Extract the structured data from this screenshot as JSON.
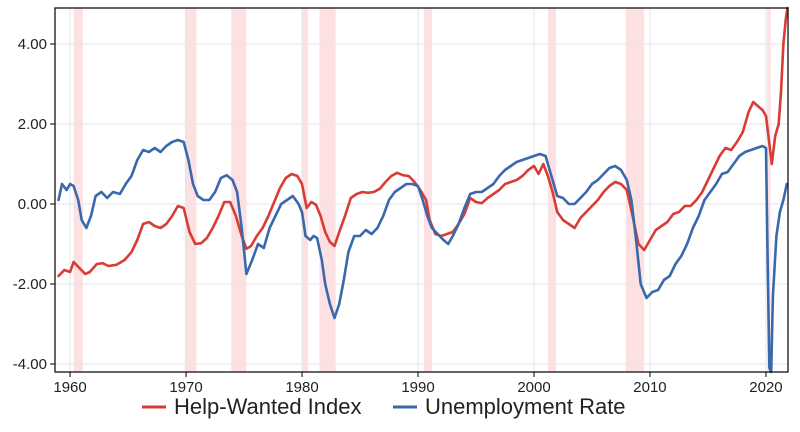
{
  "chart_data": {
    "type": "line",
    "title": "",
    "xlabel": "",
    "ylabel": "",
    "xlim": [
      1958.7,
      2021.9
    ],
    "ylim": [
      -4.2,
      4.9
    ],
    "x_ticks": [
      1960,
      1970,
      1980,
      1990,
      2000,
      2010,
      2020
    ],
    "x_tick_labels": [
      "1960",
      "1970",
      "1980",
      "1990",
      "2000",
      "2010",
      "2020"
    ],
    "y_ticks": [
      4,
      2,
      0,
      -2,
      -4
    ],
    "y_tick_labels": [
      "4.00",
      "2.00",
      "0.00",
      "-2.00",
      "-4.00"
    ],
    "grid": true,
    "legend_position": "bottom",
    "recession_shading": [
      [
        1960.3,
        1961.1
      ],
      [
        1969.9,
        1970.9
      ],
      [
        1973.9,
        1975.2
      ],
      [
        1980.0,
        1980.5
      ],
      [
        1981.5,
        1982.9
      ],
      [
        1990.5,
        1991.2
      ],
      [
        2001.2,
        2001.9
      ],
      [
        2007.9,
        2009.5
      ],
      [
        2020.1,
        2020.4
      ]
    ],
    "colors": {
      "recession": "#fde0e2",
      "grid": "#e6e6e6"
    },
    "series": [
      {
        "name": "Help-Wanted Index",
        "color": "#d93b35",
        "points": [
          [
            1959.0,
            -1.8
          ],
          [
            1959.5,
            -1.65
          ],
          [
            1960.0,
            -1.7
          ],
          [
            1960.3,
            -1.45
          ],
          [
            1960.8,
            -1.6
          ],
          [
            1961.3,
            -1.75
          ],
          [
            1961.7,
            -1.7
          ],
          [
            1962.3,
            -1.5
          ],
          [
            1962.8,
            -1.48
          ],
          [
            1963.3,
            -1.55
          ],
          [
            1964.0,
            -1.52
          ],
          [
            1964.7,
            -1.4
          ],
          [
            1965.3,
            -1.2
          ],
          [
            1965.8,
            -0.9
          ],
          [
            1966.3,
            -0.5
          ],
          [
            1966.8,
            -0.45
          ],
          [
            1967.3,
            -0.55
          ],
          [
            1967.8,
            -0.6
          ],
          [
            1968.3,
            -0.5
          ],
          [
            1968.8,
            -0.3
          ],
          [
            1969.3,
            -0.05
          ],
          [
            1969.8,
            -0.1
          ],
          [
            1970.3,
            -0.7
          ],
          [
            1970.8,
            -1.0
          ],
          [
            1971.3,
            -0.98
          ],
          [
            1971.8,
            -0.85
          ],
          [
            1972.3,
            -0.6
          ],
          [
            1972.8,
            -0.3
          ],
          [
            1973.3,
            0.05
          ],
          [
            1973.8,
            0.05
          ],
          [
            1974.3,
            -0.3
          ],
          [
            1974.8,
            -0.8
          ],
          [
            1975.2,
            -1.12
          ],
          [
            1975.6,
            -1.05
          ],
          [
            1976.1,
            -0.8
          ],
          [
            1976.6,
            -0.6
          ],
          [
            1977.1,
            -0.3
          ],
          [
            1977.6,
            0.05
          ],
          [
            1978.1,
            0.4
          ],
          [
            1978.6,
            0.65
          ],
          [
            1979.1,
            0.75
          ],
          [
            1979.6,
            0.7
          ],
          [
            1980.0,
            0.5
          ],
          [
            1980.4,
            -0.1
          ],
          [
            1980.8,
            0.05
          ],
          [
            1981.2,
            -0.02
          ],
          [
            1981.6,
            -0.3
          ],
          [
            1982.0,
            -0.7
          ],
          [
            1982.4,
            -0.95
          ],
          [
            1982.8,
            -1.05
          ],
          [
            1983.2,
            -0.7
          ],
          [
            1983.7,
            -0.3
          ],
          [
            1984.2,
            0.15
          ],
          [
            1984.7,
            0.25
          ],
          [
            1985.2,
            0.3
          ],
          [
            1985.7,
            0.28
          ],
          [
            1986.2,
            0.3
          ],
          [
            1986.7,
            0.38
          ],
          [
            1987.2,
            0.55
          ],
          [
            1987.7,
            0.7
          ],
          [
            1988.2,
            0.78
          ],
          [
            1988.7,
            0.72
          ],
          [
            1989.2,
            0.7
          ],
          [
            1989.7,
            0.55
          ],
          [
            1990.2,
            0.35
          ],
          [
            1990.7,
            0.1
          ],
          [
            1991.0,
            -0.4
          ],
          [
            1991.5,
            -0.75
          ],
          [
            1992.0,
            -0.8
          ],
          [
            1992.5,
            -0.75
          ],
          [
            1993.0,
            -0.7
          ],
          [
            1993.5,
            -0.5
          ],
          [
            1994.0,
            -0.25
          ],
          [
            1994.5,
            0.15
          ],
          [
            1995.0,
            0.05
          ],
          [
            1995.5,
            0.02
          ],
          [
            1996.0,
            0.15
          ],
          [
            1996.5,
            0.25
          ],
          [
            1997.0,
            0.35
          ],
          [
            1997.5,
            0.5
          ],
          [
            1998.0,
            0.55
          ],
          [
            1998.5,
            0.6
          ],
          [
            1999.0,
            0.7
          ],
          [
            1999.5,
            0.85
          ],
          [
            2000.0,
            0.95
          ],
          [
            2000.4,
            0.75
          ],
          [
            2000.8,
            1.0
          ],
          [
            2001.2,
            0.7
          ],
          [
            2001.6,
            0.3
          ],
          [
            2002.0,
            -0.2
          ],
          [
            2002.5,
            -0.4
          ],
          [
            2003.0,
            -0.5
          ],
          [
            2003.5,
            -0.6
          ],
          [
            2004.0,
            -0.35
          ],
          [
            2004.5,
            -0.2
          ],
          [
            2005.0,
            -0.05
          ],
          [
            2005.5,
            0.1
          ],
          [
            2006.0,
            0.3
          ],
          [
            2006.5,
            0.45
          ],
          [
            2007.0,
            0.55
          ],
          [
            2007.5,
            0.5
          ],
          [
            2008.0,
            0.35
          ],
          [
            2008.5,
            -0.3
          ],
          [
            2009.0,
            -1.0
          ],
          [
            2009.5,
            -1.15
          ],
          [
            2010.0,
            -0.9
          ],
          [
            2010.5,
            -0.65
          ],
          [
            2011.0,
            -0.55
          ],
          [
            2011.5,
            -0.45
          ],
          [
            2012.0,
            -0.25
          ],
          [
            2012.5,
            -0.2
          ],
          [
            2013.0,
            -0.05
          ],
          [
            2013.5,
            -0.05
          ],
          [
            2014.0,
            0.1
          ],
          [
            2014.5,
            0.3
          ],
          [
            2015.0,
            0.6
          ],
          [
            2015.5,
            0.9
          ],
          [
            2016.0,
            1.2
          ],
          [
            2016.5,
            1.4
          ],
          [
            2017.0,
            1.35
          ],
          [
            2017.5,
            1.55
          ],
          [
            2018.0,
            1.8
          ],
          [
            2018.5,
            2.3
          ],
          [
            2018.9,
            2.55
          ],
          [
            2019.3,
            2.45
          ],
          [
            2019.7,
            2.35
          ],
          [
            2020.0,
            2.2
          ],
          [
            2020.3,
            1.5
          ],
          [
            2020.5,
            1.0
          ],
          [
            2020.8,
            1.7
          ],
          [
            2021.1,
            2.0
          ],
          [
            2021.3,
            2.8
          ],
          [
            2021.5,
            4.0
          ],
          [
            2021.7,
            4.6
          ],
          [
            2021.85,
            4.9
          ]
        ]
      },
      {
        "name": "Unemployment Rate",
        "color": "#3a68ad",
        "points": [
          [
            1959.0,
            0.1
          ],
          [
            1959.3,
            0.5
          ],
          [
            1959.7,
            0.35
          ],
          [
            1960.0,
            0.5
          ],
          [
            1960.3,
            0.45
          ],
          [
            1960.7,
            0.1
          ],
          [
            1961.0,
            -0.4
          ],
          [
            1961.4,
            -0.6
          ],
          [
            1961.8,
            -0.3
          ],
          [
            1962.2,
            0.2
          ],
          [
            1962.7,
            0.3
          ],
          [
            1963.2,
            0.15
          ],
          [
            1963.7,
            0.3
          ],
          [
            1964.3,
            0.25
          ],
          [
            1964.8,
            0.5
          ],
          [
            1965.3,
            0.7
          ],
          [
            1965.8,
            1.1
          ],
          [
            1966.3,
            1.35
          ],
          [
            1966.8,
            1.3
          ],
          [
            1967.3,
            1.4
          ],
          [
            1967.8,
            1.3
          ],
          [
            1968.3,
            1.45
          ],
          [
            1968.8,
            1.55
          ],
          [
            1969.3,
            1.6
          ],
          [
            1969.8,
            1.55
          ],
          [
            1970.2,
            1.1
          ],
          [
            1970.6,
            0.5
          ],
          [
            1971.0,
            0.2
          ],
          [
            1971.5,
            0.1
          ],
          [
            1972.0,
            0.1
          ],
          [
            1972.5,
            0.3
          ],
          [
            1973.0,
            0.65
          ],
          [
            1973.5,
            0.72
          ],
          [
            1974.0,
            0.6
          ],
          [
            1974.4,
            0.3
          ],
          [
            1974.8,
            -0.6
          ],
          [
            1975.2,
            -1.75
          ],
          [
            1975.7,
            -1.4
          ],
          [
            1976.2,
            -1.0
          ],
          [
            1976.7,
            -1.1
          ],
          [
            1977.2,
            -0.6
          ],
          [
            1977.7,
            -0.3
          ],
          [
            1978.2,
            0.0
          ],
          [
            1978.7,
            0.1
          ],
          [
            1979.2,
            0.2
          ],
          [
            1979.7,
            0.0
          ],
          [
            1980.0,
            -0.2
          ],
          [
            1980.3,
            -0.8
          ],
          [
            1980.7,
            -0.9
          ],
          [
            1981.0,
            -0.8
          ],
          [
            1981.3,
            -0.85
          ],
          [
            1981.7,
            -1.4
          ],
          [
            1982.0,
            -2.0
          ],
          [
            1982.4,
            -2.5
          ],
          [
            1982.8,
            -2.85
          ],
          [
            1983.2,
            -2.5
          ],
          [
            1983.6,
            -1.9
          ],
          [
            1984.0,
            -1.2
          ],
          [
            1984.5,
            -0.8
          ],
          [
            1985.0,
            -0.8
          ],
          [
            1985.5,
            -0.65
          ],
          [
            1986.0,
            -0.75
          ],
          [
            1986.5,
            -0.6
          ],
          [
            1987.0,
            -0.3
          ],
          [
            1987.5,
            0.1
          ],
          [
            1988.0,
            0.3
          ],
          [
            1988.5,
            0.4
          ],
          [
            1989.0,
            0.5
          ],
          [
            1989.5,
            0.5
          ],
          [
            1990.0,
            0.45
          ],
          [
            1990.4,
            0.1
          ],
          [
            1990.8,
            -0.3
          ],
          [
            1991.2,
            -0.6
          ],
          [
            1991.7,
            -0.75
          ],
          [
            1992.2,
            -0.9
          ],
          [
            1992.6,
            -1.0
          ],
          [
            1993.0,
            -0.8
          ],
          [
            1993.5,
            -0.5
          ],
          [
            1994.0,
            -0.1
          ],
          [
            1994.5,
            0.25
          ],
          [
            1995.0,
            0.3
          ],
          [
            1995.5,
            0.3
          ],
          [
            1996.0,
            0.4
          ],
          [
            1996.5,
            0.5
          ],
          [
            1997.0,
            0.7
          ],
          [
            1997.5,
            0.85
          ],
          [
            1998.0,
            0.95
          ],
          [
            1998.5,
            1.05
          ],
          [
            1999.0,
            1.1
          ],
          [
            1999.5,
            1.15
          ],
          [
            2000.0,
            1.2
          ],
          [
            2000.5,
            1.25
          ],
          [
            2001.0,
            1.2
          ],
          [
            2001.5,
            0.7
          ],
          [
            2002.0,
            0.2
          ],
          [
            2002.5,
            0.15
          ],
          [
            2003.0,
            0.0
          ],
          [
            2003.5,
            0.0
          ],
          [
            2004.0,
            0.15
          ],
          [
            2004.5,
            0.3
          ],
          [
            2005.0,
            0.5
          ],
          [
            2005.5,
            0.6
          ],
          [
            2006.0,
            0.75
          ],
          [
            2006.5,
            0.9
          ],
          [
            2007.0,
            0.95
          ],
          [
            2007.5,
            0.85
          ],
          [
            2008.0,
            0.6
          ],
          [
            2008.4,
            0.1
          ],
          [
            2008.8,
            -0.9
          ],
          [
            2009.2,
            -2.0
          ],
          [
            2009.7,
            -2.35
          ],
          [
            2010.2,
            -2.2
          ],
          [
            2010.7,
            -2.15
          ],
          [
            2011.2,
            -1.9
          ],
          [
            2011.7,
            -1.8
          ],
          [
            2012.2,
            -1.5
          ],
          [
            2012.7,
            -1.3
          ],
          [
            2013.2,
            -1.0
          ],
          [
            2013.7,
            -0.6
          ],
          [
            2014.2,
            -0.3
          ],
          [
            2014.7,
            0.1
          ],
          [
            2015.2,
            0.3
          ],
          [
            2015.7,
            0.5
          ],
          [
            2016.2,
            0.75
          ],
          [
            2016.7,
            0.8
          ],
          [
            2017.2,
            1.0
          ],
          [
            2017.7,
            1.2
          ],
          [
            2018.2,
            1.3
          ],
          [
            2018.7,
            1.35
          ],
          [
            2019.2,
            1.4
          ],
          [
            2019.7,
            1.45
          ],
          [
            2020.0,
            1.4
          ],
          [
            2020.15,
            -1.5
          ],
          [
            2020.3,
            -4.1
          ],
          [
            2020.45,
            -4.2
          ],
          [
            2020.6,
            -2.3
          ],
          [
            2020.9,
            -0.8
          ],
          [
            2021.2,
            -0.2
          ],
          [
            2021.5,
            0.1
          ],
          [
            2021.8,
            0.5
          ]
        ]
      }
    ]
  }
}
